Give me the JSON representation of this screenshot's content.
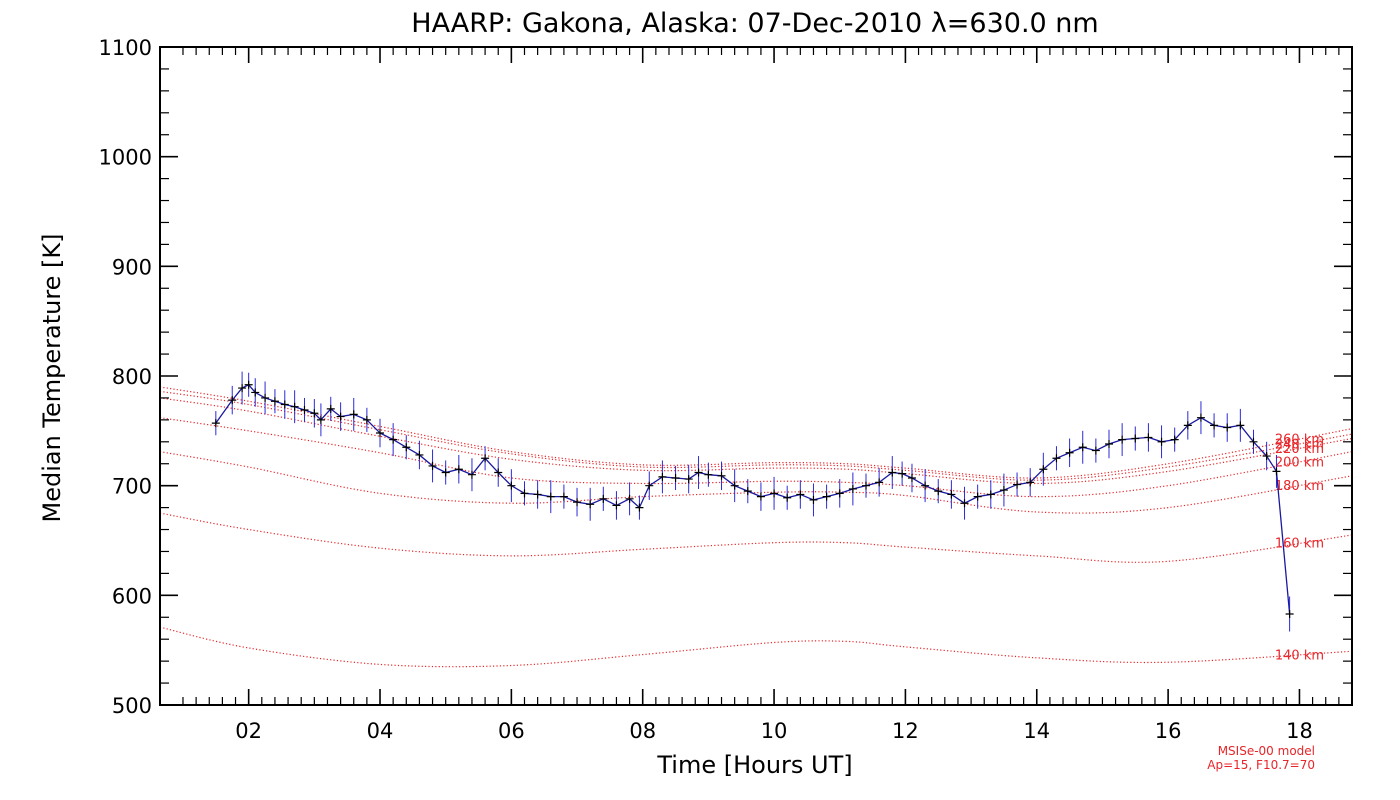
{
  "chart_data": {
    "type": "line",
    "title": "HAARP: Gakona,  Alaska: 07-Dec-2010 λ=630.0 nm",
    "xlabel": "Time [Hours UT]",
    "ylabel": "Median Temperature [K]",
    "xlim": [
      0.65,
      18.8
    ],
    "ylim": [
      500,
      1100
    ],
    "xticks": [
      2,
      4,
      6,
      8,
      10,
      12,
      14,
      16,
      18
    ],
    "xtick_labels": [
      "02",
      "04",
      "06",
      "08",
      "10",
      "12",
      "14",
      "16",
      "18"
    ],
    "yticks": [
      500,
      600,
      700,
      800,
      900,
      1000,
      1100
    ],
    "ytick_labels": [
      "500",
      "600",
      "700",
      "800",
      "900",
      "1000",
      "1100"
    ],
    "grid": false,
    "colors": {
      "data_line": "#1a1aa0",
      "error_bars": "#2b2bd8",
      "markers": "#000000",
      "model": "#e8262a"
    },
    "observed": {
      "x": [
        1.5,
        1.75,
        1.9,
        2.0,
        2.1,
        2.25,
        2.4,
        2.55,
        2.7,
        2.85,
        3.0,
        3.1,
        3.25,
        3.4,
        3.6,
        3.8,
        4.0,
        4.2,
        4.4,
        4.6,
        4.8,
        5.0,
        5.2,
        5.4,
        5.6,
        5.8,
        6.0,
        6.2,
        6.4,
        6.6,
        6.8,
        7.0,
        7.2,
        7.4,
        7.6,
        7.8,
        7.95,
        8.1,
        8.3,
        8.5,
        8.7,
        8.85,
        9.0,
        9.2,
        9.4,
        9.6,
        9.8,
        10.0,
        10.2,
        10.4,
        10.6,
        10.8,
        11.0,
        11.2,
        11.4,
        11.6,
        11.8,
        11.95,
        12.1,
        12.3,
        12.5,
        12.7,
        12.9,
        13.1,
        13.3,
        13.5,
        13.7,
        13.9,
        14.1,
        14.3,
        14.5,
        14.7,
        14.9,
        15.1,
        15.3,
        15.5,
        15.7,
        15.9,
        16.1,
        16.3,
        16.5,
        16.7,
        16.9,
        17.1,
        17.3,
        17.5,
        17.65,
        17.85
      ],
      "y": [
        757,
        778,
        789,
        792,
        785,
        780,
        777,
        774,
        772,
        769,
        766,
        760,
        770,
        763,
        765,
        760,
        748,
        742,
        735,
        728,
        718,
        712,
        715,
        710,
        725,
        712,
        700,
        693,
        692,
        690,
        690,
        685,
        683,
        688,
        682,
        688,
        680,
        700,
        708,
        707,
        706,
        712,
        710,
        709,
        700,
        695,
        690,
        693,
        689,
        692,
        687,
        690,
        693,
        697,
        700,
        703,
        712,
        711,
        707,
        700,
        695,
        692,
        684,
        690,
        692,
        696,
        701,
        703,
        715,
        725,
        730,
        735,
        732,
        738,
        742,
        743,
        744,
        740,
        742,
        755,
        762,
        755,
        753,
        755,
        740,
        727,
        713,
        583
      ]
    },
    "model": {
      "source": "MSISe-00 model",
      "parameters": "Ap=15, F10.7=70",
      "series": [
        {
          "name": "140 km",
          "x": [
            0.65,
            2,
            4,
            6,
            8,
            10,
            11.1,
            12,
            14,
            16,
            18.8
          ],
          "y": [
            571,
            552,
            537,
            536,
            546,
            557,
            558,
            553,
            543,
            539,
            549
          ]
        },
        {
          "name": "160 km",
          "x": [
            0.65,
            2,
            4,
            6,
            8,
            10,
            11.1,
            12,
            14,
            16,
            18.8
          ],
          "y": [
            675,
            660,
            643,
            636,
            642,
            648,
            648,
            644,
            636,
            631,
            655
          ]
        },
        {
          "name": "180 km",
          "x": [
            0.65,
            2,
            4,
            6,
            8,
            10,
            11.1,
            12,
            14,
            16,
            18.8
          ],
          "y": [
            731,
            717,
            693,
            684,
            690,
            694,
            694,
            691,
            676,
            680,
            709
          ]
        },
        {
          "name": "200 km",
          "x": [
            0.65,
            2,
            4,
            6,
            8,
            10,
            11.1,
            12,
            14,
            16,
            18.8
          ],
          "y": [
            762,
            750,
            730,
            707,
            702,
            704,
            703,
            700,
            690,
            700,
            731
          ]
        },
        {
          "name": "220 km",
          "x": [
            0.65,
            2,
            4,
            6,
            8,
            10,
            11.1,
            12,
            14,
            16,
            18.8
          ],
          "y": [
            780,
            768,
            745,
            724,
            714,
            716,
            715,
            711,
            702,
            713,
            743
          ]
        },
        {
          "name": "240 km",
          "x": [
            0.65,
            2,
            4,
            6,
            8,
            10,
            11.1,
            12,
            14,
            16,
            18.8
          ],
          "y": [
            786,
            774,
            751,
            729,
            717,
            719,
            718,
            714,
            705,
            717,
            747
          ]
        },
        {
          "name": "260 km",
          "x": [
            0.65,
            2,
            4,
            6,
            8,
            10,
            11.1,
            12,
            14,
            16,
            18.8
          ],
          "y": [
            790,
            777,
            754,
            731,
            719,
            721,
            720,
            716,
            707,
            720,
            752
          ]
        }
      ]
    }
  }
}
